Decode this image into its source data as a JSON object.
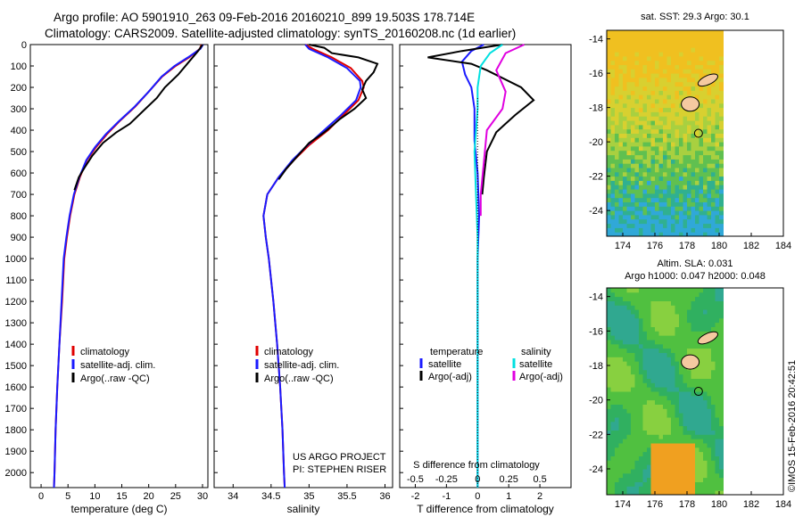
{
  "title": {
    "line1": "Argo profile: AO 5901910_263 09-Feb-2016 20160210_899 19.503S 178.714E",
    "line2": "Climatology: CARS2009. Satellite-adjusted climatology: synTS_20160208.nc (1d earlier)"
  },
  "timestamp": "©IMOS 15-Feb-2016 20:42:51",
  "colors": {
    "climatology": "#e00000",
    "satellite": "#1a1aff",
    "argo": "#000000",
    "salinity_sat": "#00e0e0",
    "salinity_argo": "#e000e0"
  },
  "chart_data": [
    {
      "type": "line",
      "name": "temperature-profile",
      "xlabel": "temperature (deg C)",
      "ylabel": "",
      "xlim": [
        -2,
        31
      ],
      "ylim": [
        2070,
        0
      ],
      "xticks": [
        0,
        5,
        10,
        15,
        20,
        25,
        30
      ],
      "yticks": [
        0,
        100,
        200,
        300,
        400,
        500,
        600,
        700,
        800,
        900,
        1000,
        1100,
        1200,
        1300,
        1400,
        1500,
        1600,
        1700,
        1800,
        1900,
        2000
      ],
      "legend": [
        "climatology",
        "satellite-adj. clim.",
        "Argo(..raw -QC)"
      ],
      "series": [
        {
          "name": "climatology",
          "color_key": "climatology",
          "points": [
            [
              29.8,
              0
            ],
            [
              29.5,
              20
            ],
            [
              27.5,
              60
            ],
            [
              25,
              100
            ],
            [
              22.5,
              150
            ],
            [
              20,
              220
            ],
            [
              17.5,
              290
            ],
            [
              14.5,
              360
            ],
            [
              12.2,
              420
            ],
            [
              10.2,
              480
            ],
            [
              8.5,
              540
            ],
            [
              7.2,
              620
            ],
            [
              6.2,
              700
            ],
            [
              5.4,
              800
            ],
            [
              4.8,
              900
            ],
            [
              4.3,
              1000
            ],
            [
              3.9,
              1200
            ],
            [
              3.4,
              1400
            ],
            [
              3.0,
              1600
            ],
            [
              2.7,
              1800
            ],
            [
              2.5,
              2000
            ],
            [
              2.4,
              2070
            ]
          ]
        },
        {
          "name": "satellite",
          "color_key": "satellite",
          "points": [
            [
              30.1,
              0
            ],
            [
              29.6,
              20
            ],
            [
              27.3,
              60
            ],
            [
              24.8,
              100
            ],
            [
              22.4,
              150
            ],
            [
              20,
              220
            ],
            [
              17.4,
              290
            ],
            [
              14.4,
              360
            ],
            [
              12,
              420
            ],
            [
              10,
              480
            ],
            [
              8.4,
              540
            ],
            [
              7.1,
              620
            ],
            [
              6.1,
              700
            ],
            [
              5.3,
              800
            ],
            [
              4.7,
              900
            ],
            [
              4.2,
              1000
            ],
            [
              3.8,
              1200
            ],
            [
              3.4,
              1400
            ],
            [
              3.0,
              1600
            ],
            [
              2.7,
              1800
            ],
            [
              2.5,
              2000
            ],
            [
              2.4,
              2070
            ]
          ]
        },
        {
          "name": "argo",
          "color_key": "argo",
          "points": [
            [
              30.0,
              0
            ],
            [
              29.2,
              30
            ],
            [
              27.5,
              80
            ],
            [
              25.5,
              140
            ],
            [
              23,
              200
            ],
            [
              21.5,
              250
            ],
            [
              19,
              310
            ],
            [
              16.5,
              370
            ],
            [
              14,
              410
            ],
            [
              11.5,
              460
            ],
            [
              9.5,
              520
            ],
            [
              8.2,
              570
            ],
            [
              7.0,
              620
            ],
            [
              6.2,
              680
            ]
          ]
        }
      ]
    },
    {
      "type": "line",
      "name": "salinity-profile",
      "xlabel": "salinity",
      "ylabel": "",
      "xlim": [
        33.75,
        36.1
      ],
      "ylim": [
        2070,
        0
      ],
      "xticks": [
        34,
        34.5,
        35,
        35.5,
        36
      ],
      "legend": [
        "climatology",
        "satellite-adj. clim.",
        "Argo(..raw -QC)"
      ],
      "annotation": [
        "US ARGO PROJECT",
        "PI: STEPHEN RISER"
      ],
      "series": [
        {
          "name": "climatology",
          "color_key": "climatology",
          "points": [
            [
              34.95,
              0
            ],
            [
              35.05,
              20
            ],
            [
              35.3,
              60
            ],
            [
              35.55,
              110
            ],
            [
              35.7,
              170
            ],
            [
              35.72,
              200
            ],
            [
              35.65,
              260
            ],
            [
              35.45,
              330
            ],
            [
              35.25,
              400
            ],
            [
              35.0,
              470
            ],
            [
              34.8,
              540
            ],
            [
              34.6,
              620
            ],
            [
              34.45,
              700
            ],
            [
              34.4,
              800
            ],
            [
              34.43,
              900
            ],
            [
              34.47,
              1000
            ],
            [
              34.53,
              1200
            ],
            [
              34.58,
              1400
            ],
            [
              34.62,
              1600
            ],
            [
              34.65,
              1800
            ],
            [
              34.67,
              2000
            ],
            [
              34.68,
              2070
            ]
          ]
        },
        {
          "name": "satellite",
          "color_key": "satellite",
          "points": [
            [
              34.95,
              0
            ],
            [
              35.0,
              20
            ],
            [
              35.25,
              60
            ],
            [
              35.5,
              110
            ],
            [
              35.67,
              170
            ],
            [
              35.68,
              200
            ],
            [
              35.62,
              260
            ],
            [
              35.42,
              330
            ],
            [
              35.2,
              400
            ],
            [
              34.98,
              470
            ],
            [
              34.78,
              540
            ],
            [
              34.6,
              620
            ],
            [
              34.45,
              700
            ],
            [
              34.4,
              800
            ],
            [
              34.43,
              900
            ],
            [
              34.47,
              1000
            ],
            [
              34.53,
              1200
            ],
            [
              34.58,
              1400
            ],
            [
              34.62,
              1600
            ],
            [
              34.65,
              1800
            ],
            [
              34.67,
              2000
            ],
            [
              34.68,
              2070
            ]
          ]
        },
        {
          "name": "argo",
          "color_key": "argo",
          "points": [
            [
              35.0,
              0
            ],
            [
              35.2,
              15
            ],
            [
              35.3,
              40
            ],
            [
              35.65,
              60
            ],
            [
              35.9,
              90
            ],
            [
              35.85,
              130
            ],
            [
              35.75,
              170
            ],
            [
              35.7,
              210
            ],
            [
              35.75,
              250
            ],
            [
              35.6,
              300
            ],
            [
              35.4,
              350
            ],
            [
              35.2,
              410
            ],
            [
              35.0,
              460
            ],
            [
              34.85,
              520
            ],
            [
              34.7,
              580
            ],
            [
              34.6,
              630
            ]
          ]
        }
      ]
    },
    {
      "type": "line",
      "name": "difference-profile",
      "xlabel": "T difference from climatology",
      "x2label": "S difference from climatology",
      "xlim": [
        -2.5,
        3.0
      ],
      "ylim": [
        2070,
        0
      ],
      "xticks": [
        -2,
        -1,
        0,
        1,
        2
      ],
      "x2ticks": [
        -0.5,
        -0.25,
        0,
        0.25,
        0.5
      ],
      "x2tick_labels": [
        "-0.5",
        "-0.25",
        "0",
        "0.25",
        "0.5"
      ],
      "legend": {
        "temperature": [
          "temperature",
          "satellite",
          "Argo(-adj)"
        ],
        "salinity": [
          "salinity",
          "satellite",
          "Argo(-adj)"
        ]
      },
      "series": [
        {
          "name": "T satellite",
          "color_key": "satellite",
          "points": [
            [
              0.2,
              0
            ],
            [
              -0.2,
              30
            ],
            [
              -0.5,
              80
            ],
            [
              -0.4,
              140
            ],
            [
              -0.2,
              200
            ],
            [
              -0.1,
              300
            ],
            [
              -0.1,
              450
            ],
            [
              0,
              600
            ],
            [
              0.05,
              800
            ],
            [
              0,
              1000
            ],
            [
              0,
              1500
            ],
            [
              0,
              2070
            ]
          ]
        },
        {
          "name": "T argo",
          "color_key": "argo",
          "points": [
            [
              0.8,
              0
            ],
            [
              -0.5,
              30
            ],
            [
              -1.6,
              60
            ],
            [
              -0.2,
              90
            ],
            [
              0.3,
              120
            ],
            [
              1.4,
              200
            ],
            [
              1.8,
              260
            ],
            [
              1.2,
              330
            ],
            [
              0.9,
              370
            ],
            [
              0.6,
              410
            ],
            [
              0.3,
              500
            ],
            [
              0.2,
              620
            ],
            [
              0.15,
              700
            ]
          ]
        },
        {
          "name": "S satellite",
          "color_key": "salinity_sat",
          "points": [
            [
              0.8,
              0
            ],
            [
              0.4,
              40
            ],
            [
              0.1,
              100
            ],
            [
              0.0,
              200
            ],
            [
              0.0,
              300
            ],
            [
              -0.1,
              500
            ],
            [
              -0.05,
              700
            ],
            [
              0,
              900
            ],
            [
              0,
              1200
            ],
            [
              0,
              2070
            ]
          ]
        },
        {
          "name": "S argo",
          "color_key": "salinity_argo",
          "points": [
            [
              1.5,
              0
            ],
            [
              0.9,
              40
            ],
            [
              0.6,
              120
            ],
            [
              0.9,
              220
            ],
            [
              0.8,
              300
            ],
            [
              0.3,
              400
            ],
            [
              0.2,
              550
            ],
            [
              0.1,
              700
            ],
            [
              0.1,
              800
            ]
          ]
        }
      ]
    },
    {
      "type": "heatmap",
      "name": "sst-map",
      "title": "sat. SST: 29.3 Argo: 30.1",
      "xlim": [
        173,
        184
      ],
      "ylim": [
        -25.5,
        -13.5
      ],
      "xticks": [
        174,
        176,
        178,
        180,
        182,
        184
      ],
      "yticks": [
        -14,
        -16,
        -18,
        -20,
        -22,
        -24
      ],
      "argo_position": {
        "lon": 178.714,
        "lat": -19.503
      }
    },
    {
      "type": "heatmap",
      "name": "sla-map",
      "title_lines": [
        "Altim. SLA: 0.031",
        "Argo h1000: 0.047 h2000: 0.048"
      ],
      "xlim": [
        173,
        184
      ],
      "ylim": [
        -25.5,
        -13.5
      ],
      "xticks": [
        174,
        176,
        178,
        180,
        182,
        184
      ],
      "yticks": [
        -14,
        -16,
        -18,
        -20,
        -22,
        -24
      ],
      "argo_position": {
        "lon": 178.714,
        "lat": -19.503
      }
    }
  ]
}
